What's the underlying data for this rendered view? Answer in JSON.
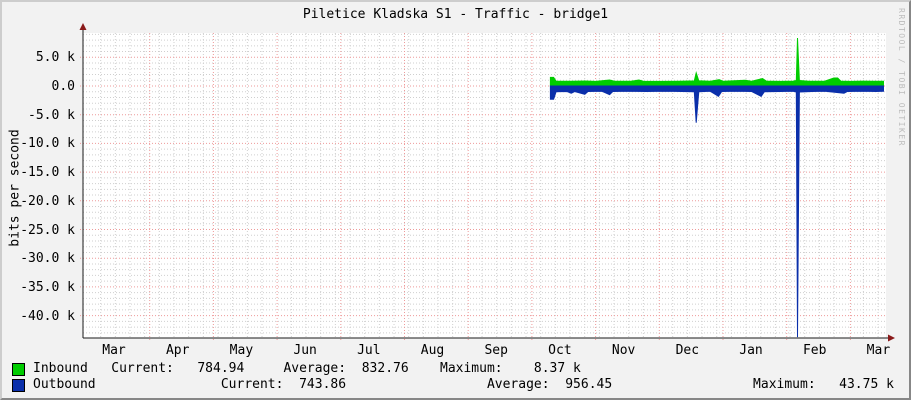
{
  "window": {
    "title": "Piletice Kladska S1 - Traffic - bridge1"
  },
  "watermark": "RRDTOOL / TOBI OETIKER",
  "axis_style": {
    "axis_color": "#1a1a1a",
    "arrow_color": "#8a1a1a",
    "major_grid_color": "#ee9a9a",
    "minor_grid_color": "#cfcfcf",
    "canvas_color": "#ffffff",
    "background_color": "#f2f2f2"
  },
  "chart_data": {
    "type": "area",
    "title": "Piletice Kladska S1 - Traffic - bridge1",
    "xlabel": "",
    "ylabel": "bits per second",
    "grid": true,
    "legend_position": "bottom",
    "ylim": [
      -43900,
      9250
    ],
    "x_axis_unit": "months (1 year span, Mar through Mar)",
    "x_tick_labels": [
      "Mar",
      "Apr",
      "May",
      "Jun",
      "Jul",
      "Aug",
      "Sep",
      "Oct",
      "Nov",
      "Dec",
      "Jan",
      "Feb",
      "Mar"
    ],
    "y_ticks": [
      {
        "label": "5.0 k",
        "value": 5000
      },
      {
        "label": "0.0",
        "value": 0
      },
      {
        "label": "-5.0 k",
        "value": -5000
      },
      {
        "label": "-10.0 k",
        "value": -10000
      },
      {
        "label": "-15.0 k",
        "value": -15000
      },
      {
        "label": "-20.0 k",
        "value": -20000
      },
      {
        "label": "-25.0 k",
        "value": -25000
      },
      {
        "label": "-30.0 k",
        "value": -30000
      },
      {
        "label": "-35.0 k",
        "value": -35000
      },
      {
        "label": "-40.0 k",
        "value": -40000
      }
    ],
    "note": "Outbound is plotted mirrored below zero. Data exists only from mid-October to early March. Points are [months_since_left_edge_Mar_1, bits_per_second].",
    "series": [
      {
        "name": "Inbound",
        "color": "#00cc00",
        "orientation": 1,
        "stats": {
          "current": "784.94",
          "average": "832.76",
          "maximum": "8.37 k"
        },
        "points": [
          [
            7.29,
            0
          ],
          [
            7.29,
            1500
          ],
          [
            7.34,
            1500
          ],
          [
            7.38,
            850
          ],
          [
            7.6,
            820
          ],
          [
            7.84,
            870
          ],
          [
            8.0,
            810
          ],
          [
            8.22,
            1050
          ],
          [
            8.3,
            830
          ],
          [
            8.55,
            820
          ],
          [
            8.68,
            1050
          ],
          [
            8.75,
            830
          ],
          [
            9.0,
            810
          ],
          [
            9.3,
            840
          ],
          [
            9.55,
            880
          ],
          [
            9.58,
            2300
          ],
          [
            9.62,
            900
          ],
          [
            9.8,
            820
          ],
          [
            9.94,
            1100
          ],
          [
            10.0,
            830
          ],
          [
            10.35,
            1000
          ],
          [
            10.45,
            830
          ],
          [
            10.62,
            1300
          ],
          [
            10.68,
            850
          ],
          [
            10.9,
            810
          ],
          [
            11.1,
            860
          ],
          [
            11.15,
            950
          ],
          [
            11.17,
            8370
          ],
          [
            11.2,
            950
          ],
          [
            11.35,
            830
          ],
          [
            11.6,
            850
          ],
          [
            11.74,
            1400
          ],
          [
            11.8,
            1400
          ],
          [
            11.85,
            860
          ],
          [
            12.0,
            810
          ],
          [
            12.2,
            850
          ],
          [
            12.35,
            820
          ],
          [
            12.52,
            820
          ],
          [
            12.52,
            0
          ]
        ]
      },
      {
        "name": "Outbound",
        "color": "#0a2faa",
        "orientation": -1,
        "stats": {
          "current": "743.86",
          "average": "956.45",
          "maximum": "43.75 k"
        },
        "points": [
          [
            7.29,
            0
          ],
          [
            7.29,
            2300
          ],
          [
            7.34,
            2300
          ],
          [
            7.38,
            1000
          ],
          [
            7.55,
            950
          ],
          [
            7.62,
            1250
          ],
          [
            7.67,
            950
          ],
          [
            7.83,
            1450
          ],
          [
            7.88,
            960
          ],
          [
            8.1,
            930
          ],
          [
            8.22,
            1500
          ],
          [
            8.27,
            950
          ],
          [
            8.5,
            920
          ],
          [
            8.8,
            960
          ],
          [
            9.1,
            920
          ],
          [
            9.35,
            950
          ],
          [
            9.55,
            1000
          ],
          [
            9.58,
            6400
          ],
          [
            9.62,
            1000
          ],
          [
            9.8,
            930
          ],
          [
            9.93,
            1800
          ],
          [
            9.98,
            950
          ],
          [
            10.2,
            920
          ],
          [
            10.45,
            960
          ],
          [
            10.6,
            1800
          ],
          [
            10.65,
            1000
          ],
          [
            10.9,
            950
          ],
          [
            11.1,
            930
          ],
          [
            11.15,
            1050
          ],
          [
            11.17,
            43750
          ],
          [
            11.2,
            1050
          ],
          [
            11.4,
            950
          ],
          [
            11.6,
            920
          ],
          [
            11.9,
            1250
          ],
          [
            11.95,
            950
          ],
          [
            12.2,
            920
          ],
          [
            12.4,
            950
          ],
          [
            12.52,
            930
          ],
          [
            12.52,
            0
          ]
        ]
      }
    ]
  },
  "legend": {
    "rows": [
      {
        "series": "Inbound",
        "color": "#00cc00",
        "text": "Inbound   Current:   784.94     Average:  832.76    Maximum:    8.37 k"
      },
      {
        "series": "Outbound",
        "color": "#0a2faa",
        "text": "Outbound                Current:  743.86                  Average:  956.45                  Maximum:   43.75 k"
      }
    ]
  }
}
